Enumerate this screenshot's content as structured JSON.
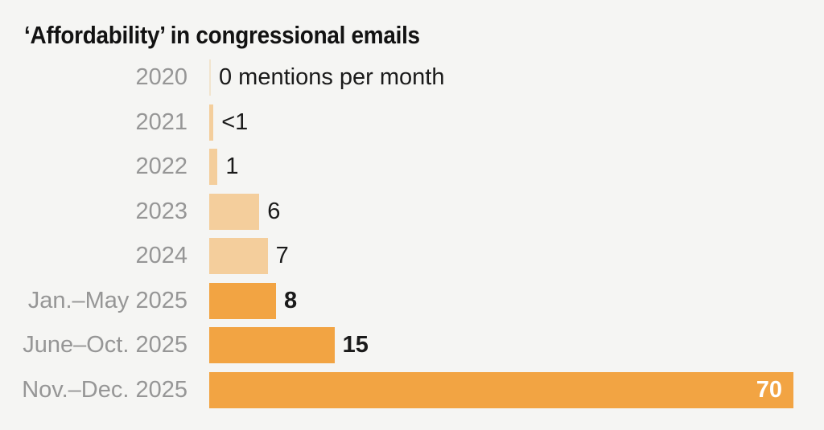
{
  "chart_data": {
    "type": "bar",
    "orientation": "horizontal",
    "title": "‘Affordability’ in congressional emails",
    "unit_note": "mentions per month",
    "categories": [
      "2020",
      "2021",
      "2022",
      "2023",
      "2024",
      "Jan.–May 2025",
      "June–Oct. 2025",
      "Nov.–Dec. 2025"
    ],
    "values": [
      0,
      0.5,
      1,
      6,
      7,
      8,
      15,
      70
    ],
    "value_labels": [
      "0 mentions per month",
      "<1",
      "1",
      "6",
      "7",
      "8",
      "15",
      "70"
    ],
    "xlim": [
      0,
      70
    ],
    "grid": false,
    "legend": "none",
    "colors": {
      "background": "#F5F5F3",
      "title_text": "#121212",
      "category_text": "#969696",
      "value_text": "#1A1A1A",
      "value_text_inside": "#FFFFFF",
      "bar_light": "#F4CE9C",
      "bar_dark": "#F2A443",
      "zero_tick": "#F2E4CE"
    },
    "rows": [
      {
        "category": "2020",
        "value": 0,
        "value_label": "0 mentions per month",
        "style": "light",
        "bold": false,
        "label_inside": false
      },
      {
        "category": "2021",
        "value": 0.5,
        "value_label": "<1",
        "style": "light",
        "bold": false,
        "label_inside": false
      },
      {
        "category": "2022",
        "value": 1,
        "value_label": "1",
        "style": "light",
        "bold": false,
        "label_inside": false
      },
      {
        "category": "2023",
        "value": 6,
        "value_label": "6",
        "style": "light",
        "bold": false,
        "label_inside": false
      },
      {
        "category": "2024",
        "value": 7,
        "value_label": "7",
        "style": "light",
        "bold": false,
        "label_inside": false
      },
      {
        "category": "Jan.–May 2025",
        "value": 8,
        "value_label": "8",
        "style": "dark",
        "bold": true,
        "label_inside": false
      },
      {
        "category": "June–Oct. 2025",
        "value": 15,
        "value_label": "15",
        "style": "dark",
        "bold": true,
        "label_inside": false
      },
      {
        "category": "Nov.–Dec. 2025",
        "value": 70,
        "value_label": "70",
        "style": "dark",
        "bold": true,
        "label_inside": true
      }
    ]
  }
}
